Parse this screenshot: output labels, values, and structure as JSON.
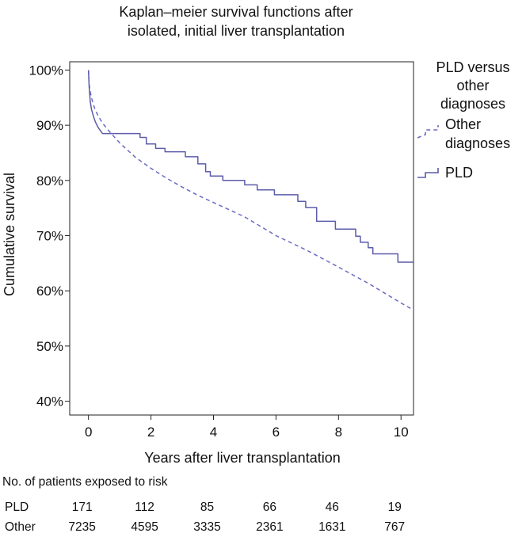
{
  "chart_data": {
    "type": "line",
    "title_lines": [
      "Kaplan–meier survival functions after",
      "isolated, initial liver transplantation"
    ],
    "xlabel": "Years after liver transplantation",
    "ylabel": "Cumulative survival",
    "xlim": [
      -0.6,
      10.4
    ],
    "ylim": [
      37.5,
      101.5
    ],
    "xticks": [
      0,
      2,
      4,
      6,
      8,
      10
    ],
    "xtick_labels": [
      "0",
      "2",
      "4",
      "6",
      "8",
      "10"
    ],
    "yticks": [
      40,
      50,
      60,
      70,
      80,
      90,
      100
    ],
    "ytick_labels": [
      "40%",
      "50%",
      "60%",
      "70%",
      "80%",
      "90%",
      "100%"
    ],
    "grid": false,
    "legend": {
      "title_lines": [
        "PLD versus",
        "other",
        "diagnoses"
      ],
      "placement": "right",
      "entries": [
        {
          "label_lines": [
            "Other",
            "diagnoses"
          ],
          "style": "dashed"
        },
        {
          "label_lines": [
            "PLD"
          ],
          "style": "solid"
        }
      ]
    },
    "series": [
      {
        "name": "Other diagnoses",
        "style": "dashed",
        "color": "#6b6bc4",
        "points": [
          [
            0,
            100
          ],
          [
            0.02,
            97.5
          ],
          [
            0.06,
            96
          ],
          [
            0.12,
            94.5
          ],
          [
            0.2,
            93
          ],
          [
            0.3,
            91.8
          ],
          [
            0.45,
            90.4
          ],
          [
            0.65,
            89
          ],
          [
            1.0,
            86.8
          ],
          [
            1.5,
            84.2
          ],
          [
            2.0,
            82.2
          ],
          [
            2.5,
            80.4
          ],
          [
            3.0,
            78.8
          ],
          [
            3.5,
            77.3
          ],
          [
            4.0,
            76
          ],
          [
            5.0,
            73.4
          ],
          [
            6.0,
            70
          ],
          [
            7.0,
            67.3
          ],
          [
            8.0,
            64.3
          ],
          [
            9.0,
            61.2
          ],
          [
            10.0,
            57.8
          ],
          [
            10.4,
            56.5
          ]
        ]
      },
      {
        "name": "PLD",
        "style": "solid",
        "color": "#5c5caa",
        "points": [
          [
            0,
            100
          ],
          [
            0.02,
            97
          ],
          [
            0.06,
            94.2
          ],
          [
            0.1,
            92.8
          ],
          [
            0.16,
            91.6
          ],
          [
            0.22,
            90.6
          ],
          [
            0.32,
            89.5
          ],
          [
            0.45,
            88.5
          ],
          [
            1.65,
            88.5
          ],
          [
            1.65,
            87.8
          ],
          [
            1.85,
            87.8
          ],
          [
            1.85,
            86.6
          ],
          [
            2.15,
            86.6
          ],
          [
            2.15,
            85.8
          ],
          [
            2.45,
            85.8
          ],
          [
            2.45,
            85.2
          ],
          [
            3.1,
            85.2
          ],
          [
            3.1,
            84.3
          ],
          [
            3.5,
            84.3
          ],
          [
            3.5,
            83
          ],
          [
            3.75,
            83
          ],
          [
            3.75,
            81.6
          ],
          [
            3.9,
            81.6
          ],
          [
            3.9,
            80.8
          ],
          [
            4.3,
            80.8
          ],
          [
            4.3,
            80
          ],
          [
            5.0,
            80
          ],
          [
            5.0,
            79.2
          ],
          [
            5.4,
            79.2
          ],
          [
            5.4,
            78.3
          ],
          [
            5.95,
            78.3
          ],
          [
            5.95,
            77.4
          ],
          [
            6.7,
            77.4
          ],
          [
            6.7,
            76.2
          ],
          [
            6.95,
            76.2
          ],
          [
            6.95,
            75.1
          ],
          [
            7.3,
            75.1
          ],
          [
            7.3,
            72.6
          ],
          [
            7.9,
            72.6
          ],
          [
            7.9,
            71.2
          ],
          [
            8.55,
            71.2
          ],
          [
            8.55,
            69.9
          ],
          [
            8.7,
            69.9
          ],
          [
            8.7,
            68.8
          ],
          [
            8.95,
            68.8
          ],
          [
            8.95,
            67.8
          ],
          [
            9.1,
            67.8
          ],
          [
            9.1,
            66.7
          ],
          [
            9.9,
            66.7
          ],
          [
            9.9,
            65.2
          ],
          [
            10.4,
            65.2
          ]
        ]
      }
    ],
    "risk_table": {
      "title": "No. of patients exposed to risk",
      "times": [
        0,
        2,
        4,
        6,
        8,
        10
      ],
      "rows": [
        {
          "label": "PLD",
          "values": [
            "171",
            "112",
            "85",
            "66",
            "46",
            "19"
          ]
        },
        {
          "label": "Other",
          "values": [
            "7235",
            "4595",
            "3335",
            "2361",
            "1631",
            "767"
          ]
        }
      ]
    }
  }
}
